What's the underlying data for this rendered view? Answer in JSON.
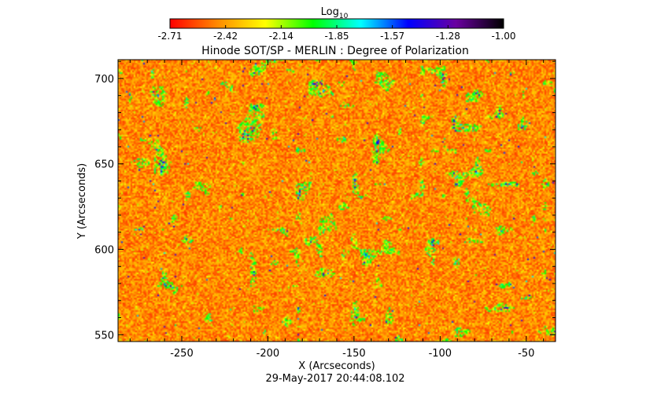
{
  "chart_data": {
    "type": "heatmap",
    "title": "Hinode SOT/SP - MERLIN : Degree of Polarization",
    "xlabel": "X (Arcseconds)",
    "ylabel": "Y (Arcseconds)",
    "footer": "29-May-2017 20:44:08.102",
    "xlim": [
      -287,
      -33
    ],
    "ylim": [
      546,
      711
    ],
    "x_ticks": [
      -250,
      -200,
      -150,
      -100,
      -50
    ],
    "y_ticks": [
      550,
      600,
      650,
      700
    ],
    "colorbar": {
      "label_main": "Log",
      "label_sub": "10",
      "range": [
        -2.71,
        -1.0
      ],
      "ticks": [
        "-2.71",
        "-2.42",
        "-2.14",
        "-1.85",
        "-1.57",
        "-1.28",
        "-1.00"
      ],
      "colors": [
        "#ff0000",
        "#ff8a00",
        "#ffff00",
        "#00ff00",
        "#00ffff",
        "#0000ff",
        "#6a00a0",
        "#000000"
      ]
    },
    "field": {
      "typical_value": -2.6,
      "pixel_grid": "fine red-orange noise with scattered yellow, green and sparse blue polarization patches"
    }
  }
}
